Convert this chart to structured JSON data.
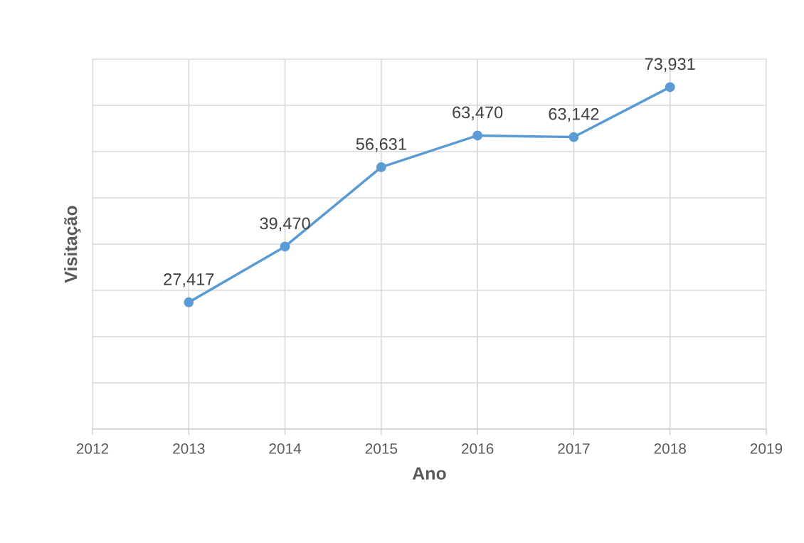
{
  "chart_data": {
    "type": "line",
    "xlabel": "Ano",
    "ylabel": "Visitação",
    "x": [
      2013,
      2014,
      2015,
      2016,
      2017,
      2018
    ],
    "series": [
      {
        "color": "#5b9bd5",
        "values": [
          27417,
          39470,
          56631,
          63470,
          63142,
          73931
        ],
        "value_labels": [
          "27,417",
          "39,470",
          "56,631",
          "63,470",
          "63,142",
          "73,931"
        ]
      }
    ],
    "xlim": [
      2012,
      2019
    ],
    "xticks": [
      2012,
      2013,
      2014,
      2015,
      2016,
      2017,
      2018,
      2019
    ],
    "ylim": [
      0,
      80000
    ],
    "yticks": [
      {
        "value": 0,
        "label": null
      },
      {
        "value": 10000,
        "label": null
      },
      {
        "value": 20000,
        "label": null
      },
      {
        "value": 30000,
        "label": null
      },
      {
        "value": 40000,
        "label": null
      },
      {
        "value": 50000,
        "label": null
      },
      {
        "value": 60000,
        "label": null
      },
      {
        "value": 70000,
        "label": null
      },
      {
        "value": 80000,
        "label": null
      }
    ],
    "tick_labels": "x",
    "grid": true,
    "marker": "circle",
    "line_style": "solid"
  }
}
